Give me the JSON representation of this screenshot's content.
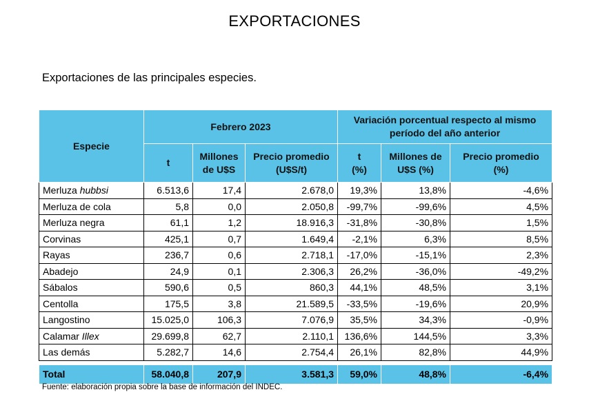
{
  "title": "EXPORTACIONES",
  "subtitle": "Exportaciones de las principales especies.",
  "table": {
    "header": {
      "species": "Especie",
      "group1": "Febrero 2023",
      "group2": "Variación porcentual respecto al mismo período del año anterior",
      "cols": [
        {
          "l1": "t",
          "l2": ""
        },
        {
          "l1": "Millones",
          "l2": "de U$S"
        },
        {
          "l1": "Precio promedio",
          "l2": "(U$S/t)"
        },
        {
          "l1": "t",
          "l2": "(%)"
        },
        {
          "l1": "Millones de",
          "l2": "U$S (%)"
        },
        {
          "l1": "Precio promedio",
          "l2": "(%)"
        }
      ]
    },
    "rows": [
      {
        "name": "Merluza ",
        "name_italic": "hubbsi",
        "values": [
          "6.513,6",
          "17,4",
          "2.678,0",
          "19,3%",
          "13,8%",
          "-4,6%"
        ]
      },
      {
        "name": "Merluza de cola",
        "name_italic": "",
        "values": [
          "5,8",
          "0,0",
          "2.050,8",
          "-99,7%",
          "-99,6%",
          "4,5%"
        ]
      },
      {
        "name": "Merluza negra",
        "name_italic": "",
        "values": [
          "61,1",
          "1,2",
          "18.916,3",
          "-31,8%",
          "-30,8%",
          "1,5%"
        ]
      },
      {
        "name": "Corvinas",
        "name_italic": "",
        "values": [
          "425,1",
          "0,7",
          "1.649,4",
          "-2,1%",
          "6,3%",
          "8,5%"
        ]
      },
      {
        "name": "Rayas",
        "name_italic": "",
        "values": [
          "236,7",
          "0,6",
          "2.718,1",
          "-17,0%",
          "-15,1%",
          "2,3%"
        ]
      },
      {
        "name": "Abadejo",
        "name_italic": "",
        "values": [
          "24,9",
          "0,1",
          "2.306,3",
          "26,2%",
          "-36,0%",
          "-49,2%"
        ]
      },
      {
        "name": "Sábalos",
        "name_italic": "",
        "values": [
          "590,6",
          "0,5",
          "860,3",
          "44,1%",
          "48,5%",
          "3,1%"
        ]
      },
      {
        "name": "Centolla",
        "name_italic": "",
        "values": [
          "175,5",
          "3,8",
          "21.589,5",
          "-33,5%",
          "-19,6%",
          "20,9%"
        ]
      },
      {
        "name": "Langostino",
        "name_italic": "",
        "values": [
          "15.025,0",
          "106,3",
          "7.076,9",
          "35,5%",
          "34,3%",
          "-0,9%"
        ]
      },
      {
        "name": "Calamar ",
        "name_italic": "Illex",
        "values": [
          "29.699,8",
          "62,7",
          "2.110,1",
          "136,6%",
          "144,5%",
          "3,3%"
        ]
      },
      {
        "name": "Las demás",
        "name_italic": "",
        "values": [
          "5.282,7",
          "14,6",
          "2.754,4",
          "26,1%",
          "82,8%",
          "44,9%"
        ]
      }
    ],
    "total": {
      "name": "Total",
      "values": [
        "58.040,8",
        "207,9",
        "3.581,3",
        "59,0%",
        "48,8%",
        "-6,4%"
      ]
    }
  },
  "source": "Fuente: elaboración propia sobre la base de información del INDEC.",
  "colors": {
    "header_bg": "#5bc2e7"
  }
}
